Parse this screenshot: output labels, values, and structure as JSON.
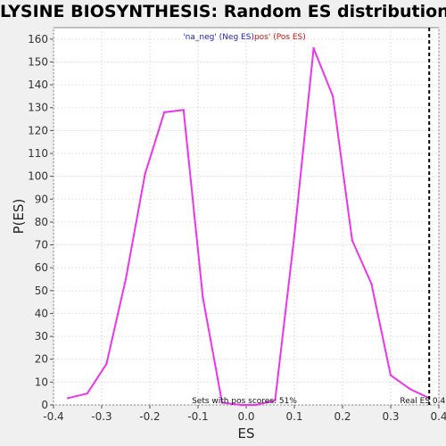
{
  "chart_data": {
    "type": "line",
    "title": "LYSINE BIOSYNTHESIS: Random ES distribution",
    "xlabel": "ES",
    "ylabel": "P(ES)",
    "xlim": [
      -0.4,
      0.4
    ],
    "ylim": [
      0,
      165
    ],
    "x_ticks": [
      "-0.4",
      "-0.3",
      "-0.2",
      "-0.1",
      "0.0",
      "0.1",
      "0.2",
      "0.3",
      "0.4"
    ],
    "y_ticks": [
      "0",
      "10",
      "20",
      "30",
      "40",
      "50",
      "60",
      "70",
      "80",
      "90",
      "100",
      "110",
      "120",
      "130",
      "140",
      "150",
      "160"
    ],
    "grid": true,
    "legend": {
      "neg_label": "'na_neg' (Neg ES)",
      "pos_label": "pos' (Pos ES)",
      "neg_color": "#2020c0",
      "pos_color": "#d01010",
      "placement": "top-center"
    },
    "series": [
      {
        "color": "#ee33ee",
        "points": [
          [
            -0.37,
            3
          ],
          [
            -0.33,
            5
          ],
          [
            -0.29,
            18
          ],
          [
            -0.25,
            55
          ],
          [
            -0.21,
            101
          ],
          [
            -0.17,
            128
          ],
          [
            -0.13,
            129
          ],
          [
            -0.09,
            47
          ],
          [
            -0.05,
            1
          ],
          [
            -0.01,
            0
          ],
          [
            0.02,
            0
          ],
          [
            0.06,
            2
          ],
          [
            0.1,
            74
          ],
          [
            0.14,
            156
          ],
          [
            0.18,
            135
          ],
          [
            0.22,
            72
          ],
          [
            0.26,
            53
          ],
          [
            0.3,
            13
          ],
          [
            0.34,
            7
          ],
          [
            0.38,
            3
          ]
        ]
      }
    ],
    "real_es": {
      "x": 0.38,
      "label": "Real ES 0.4"
    },
    "annotation": "Sets with pos scores: 51%"
  }
}
